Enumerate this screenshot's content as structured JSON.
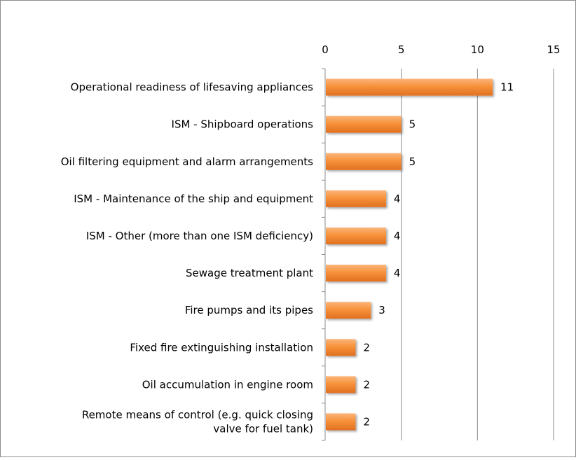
{
  "chart_data": {
    "type": "bar",
    "orientation": "horizontal",
    "title": "",
    "xlabel": "",
    "ylabel": "",
    "xlim": [
      0,
      15
    ],
    "ticks": [
      0,
      5,
      10,
      15
    ],
    "tick_labels": [
      "0",
      "5",
      "10",
      "15"
    ],
    "axis_position": "top",
    "grid": true,
    "legend": "none",
    "bar_color": "#F7923A",
    "bar_color_dark": "#E07020",
    "categories": [
      [
        "Operational readiness of lifesaving appliances"
      ],
      [
        "ISM - Shipboard operations"
      ],
      [
        "Oil filtering equipment and alarm arrangements"
      ],
      [
        "ISM - Maintenance of the ship and equipment"
      ],
      [
        "ISM - Other (more than one ISM deficiency)"
      ],
      [
        "Sewage treatment plant"
      ],
      [
        "Fire pumps and its pipes"
      ],
      [
        "Fixed fire  extinguishing installation"
      ],
      [
        "Oil accumulation in engine room"
      ],
      [
        "Remote means of control (e.g. quick closing",
        "valve for fuel tank)"
      ]
    ],
    "values": [
      11,
      5,
      5,
      4,
      4,
      4,
      3,
      2,
      2,
      2
    ],
    "value_labels": [
      "11",
      "5",
      "5",
      "4",
      "4",
      "4",
      "3",
      "2",
      "2",
      "2"
    ]
  }
}
